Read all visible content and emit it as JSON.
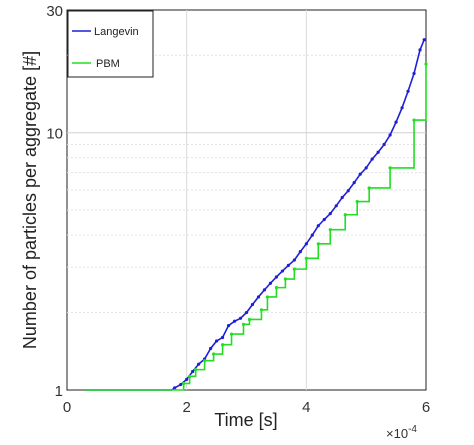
{
  "chart_data": {
    "type": "line",
    "xlabel": "Time [s]",
    "ylabel": "Number of particles per aggregate [#]",
    "x_multiplier": "×10",
    "x_multiplier_exp": "-4",
    "xlim": [
      0,
      6
    ],
    "ylim": [
      1,
      30
    ],
    "yscale": "log",
    "xticks": [
      "0",
      "2",
      "4",
      "6"
    ],
    "yticks": [
      "1",
      "10",
      "30"
    ],
    "grid": true,
    "legend_position": "top-left",
    "colors": {
      "Langevin": "#1f1fd6",
      "PBM": "#22dd22"
    },
    "series": [
      {
        "name": "Langevin",
        "x": [
          0.3,
          1.75,
          1.8,
          1.9,
          2.0,
          2.1,
          2.2,
          2.3,
          2.4,
          2.5,
          2.6,
          2.7,
          2.8,
          2.9,
          3.0,
          3.1,
          3.2,
          3.3,
          3.4,
          3.5,
          3.6,
          3.7,
          3.8,
          3.9,
          4.0,
          4.1,
          4.2,
          4.3,
          4.4,
          4.5,
          4.6,
          4.7,
          4.8,
          4.9,
          5.0,
          5.1,
          5.2,
          5.3,
          5.4,
          5.5,
          5.6,
          5.7,
          5.8,
          5.9,
          5.97
        ],
        "y": [
          1.0,
          1.0,
          1.02,
          1.05,
          1.1,
          1.18,
          1.26,
          1.32,
          1.45,
          1.55,
          1.6,
          1.78,
          1.85,
          1.9,
          2.0,
          2.15,
          2.3,
          2.45,
          2.6,
          2.75,
          2.9,
          3.05,
          3.2,
          3.45,
          3.7,
          4.0,
          4.35,
          4.6,
          4.85,
          5.2,
          5.6,
          5.95,
          6.4,
          6.9,
          7.3,
          7.9,
          8.4,
          9.0,
          9.8,
          11.0,
          12.5,
          14.5,
          17.0,
          21.0,
          23.0
        ]
      },
      {
        "name": "PBM",
        "x": [
          0.3,
          1.85,
          1.95,
          2.05,
          2.15,
          2.3,
          2.45,
          2.6,
          2.75,
          2.95,
          3.05,
          3.25,
          3.35,
          3.5,
          3.65,
          3.8,
          4.0,
          4.2,
          4.4,
          4.65,
          4.85,
          5.05,
          5.4,
          5.8,
          6.0
        ],
        "y": [
          1.0,
          1.0,
          1.06,
          1.13,
          1.2,
          1.3,
          1.38,
          1.5,
          1.65,
          1.8,
          1.88,
          2.05,
          2.3,
          2.5,
          2.7,
          2.95,
          3.25,
          3.7,
          4.2,
          4.8,
          5.4,
          6.1,
          7.3,
          11.2,
          18.5
        ]
      }
    ]
  }
}
